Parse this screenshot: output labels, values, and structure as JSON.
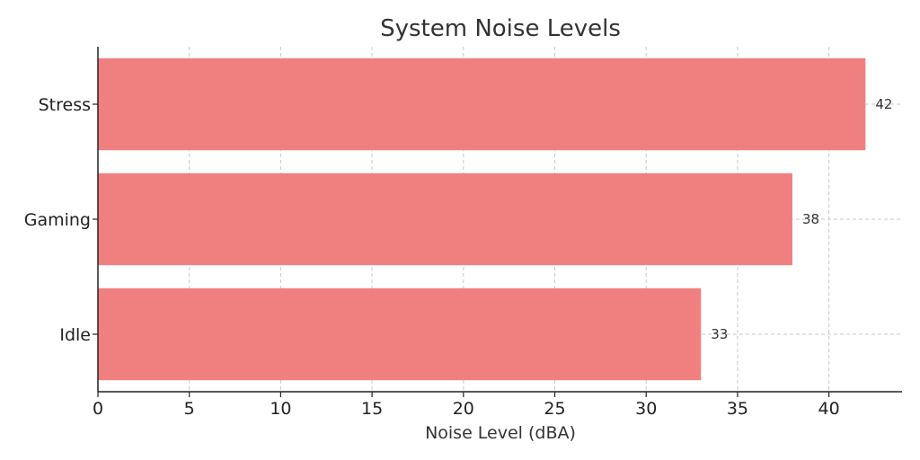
{
  "chart_data": {
    "type": "bar",
    "orientation": "horizontal",
    "title": "System Noise Levels",
    "xlabel": "Noise Level (dBA)",
    "ylabel": "",
    "categories": [
      "Idle",
      "Gaming",
      "Stress"
    ],
    "values": [
      33,
      38,
      42
    ],
    "value_labels": [
      "33",
      "38",
      "42"
    ],
    "xlim": [
      0,
      44
    ],
    "x_ticks": [
      0,
      5,
      10,
      15,
      20,
      25,
      30,
      35,
      40
    ],
    "grid": true,
    "legend": "none",
    "bar_color": "#f08080"
  }
}
